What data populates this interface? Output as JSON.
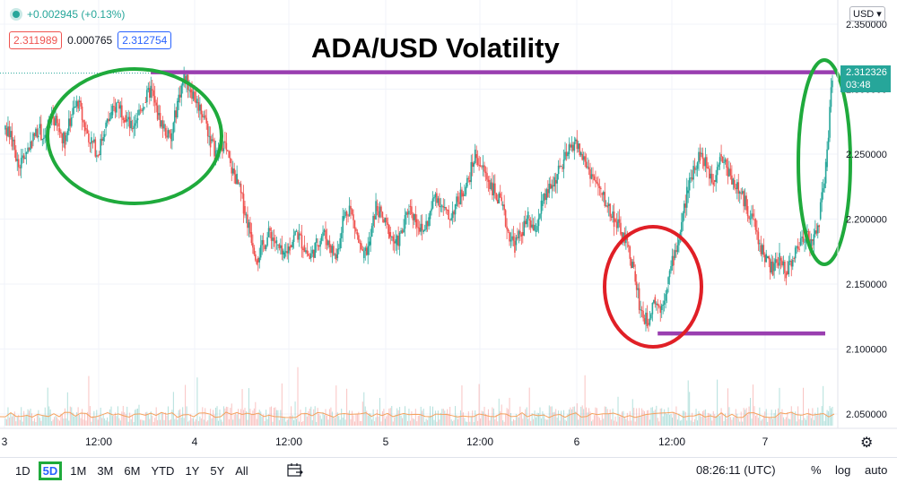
{
  "legend": {
    "change": "+0.002945 (+0.13%)"
  },
  "quotes": {
    "sell": "2.311989",
    "spread": "0.000765",
    "buy": "2.312754"
  },
  "title": "ADA/USD Volatility",
  "currency": "USD",
  "price_tag": {
    "price": "2.312326",
    "countdown": "03:48"
  },
  "y_ticks_labels": [
    "2.350000",
    "2.300000",
    "2.250000",
    "2.200000",
    "2.150000",
    "2.100000",
    "2.050000"
  ],
  "x_ticks_labels": [
    "3",
    "12:00",
    "4",
    "12:00",
    "5",
    "12:00",
    "6",
    "12:00",
    "7"
  ],
  "bottom": {
    "ranges": [
      "1D",
      "5D",
      "1M",
      "3M",
      "6M",
      "YTD",
      "1Y",
      "5Y",
      "All"
    ],
    "active": "5D",
    "time": "08:26:11 (UTC)",
    "pct": "%",
    "log": "log",
    "auto": "auto"
  },
  "colors": {
    "up": "#26a69a",
    "down": "#ef5350",
    "annotation_green": "#1faa3c",
    "annotation_red": "#e01f26",
    "level_purple": "#9a3fb0"
  },
  "chart_data": {
    "type": "line",
    "title": "ADA/USD Volatility",
    "ylim": [
      2.03,
      2.36
    ],
    "x_labels": [
      "3",
      "12:00",
      "4",
      "12:00",
      "5",
      "12:00",
      "6",
      "12:00",
      "7"
    ],
    "y_ticks": [
      2.35,
      2.3,
      2.25,
      2.2,
      2.15,
      2.1,
      2.05
    ],
    "series": [
      {
        "values": [
          2.27,
          2.26,
          2.24,
          2.25,
          2.26,
          2.27,
          2.26,
          2.28,
          2.27,
          2.26,
          2.28,
          2.29,
          2.27,
          2.26,
          2.25,
          2.27,
          2.28,
          2.29,
          2.28,
          2.27,
          2.28,
          2.29,
          2.3,
          2.28,
          2.27,
          2.26,
          2.29,
          2.31,
          2.3,
          2.29,
          2.28,
          2.26,
          2.25,
          2.26,
          2.24,
          2.23,
          2.21,
          2.19,
          2.17,
          2.18,
          2.19,
          2.18,
          2.17,
          2.18,
          2.19,
          2.18,
          2.17,
          2.18,
          2.19,
          2.18,
          2.17,
          2.2,
          2.21,
          2.19,
          2.17,
          2.18,
          2.21,
          2.2,
          2.19,
          2.18,
          2.19,
          2.21,
          2.2,
          2.19,
          2.2,
          2.22,
          2.21,
          2.2,
          2.21,
          2.22,
          2.23,
          2.25,
          2.24,
          2.23,
          2.22,
          2.21,
          2.19,
          2.18,
          2.19,
          2.2,
          2.19,
          2.21,
          2.22,
          2.23,
          2.24,
          2.25,
          2.26,
          2.25,
          2.24,
          2.23,
          2.22,
          2.21,
          2.2,
          2.19,
          2.18,
          2.16,
          2.13,
          2.12,
          2.14,
          2.13,
          2.15,
          2.17,
          2.19,
          2.22,
          2.24,
          2.25,
          2.24,
          2.23,
          2.25,
          2.24,
          2.23,
          2.22,
          2.21,
          2.2,
          2.18,
          2.17,
          2.16,
          2.17,
          2.16,
          2.17,
          2.18,
          2.19,
          2.18,
          2.2,
          2.24,
          2.31
        ]
      }
    ],
    "volume_max": 1,
    "annotations": {
      "levels": [
        {
          "y": 2.313,
          "from": 0.18,
          "to": 1.0,
          "color": "purple"
        },
        {
          "y": 2.112,
          "from": 0.785,
          "to": 0.985,
          "color": "purple"
        }
      ]
    }
  }
}
